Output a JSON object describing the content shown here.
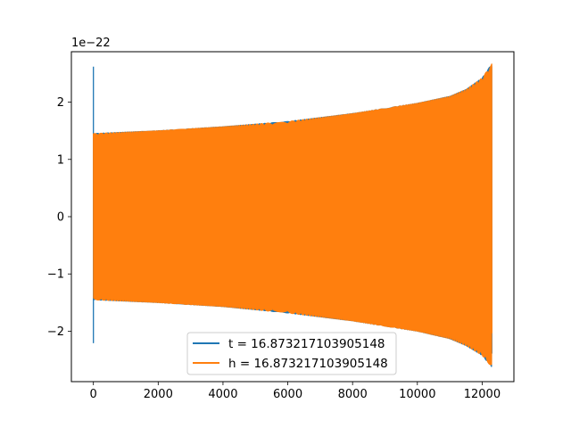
{
  "chart_data": {
    "type": "line",
    "title": "",
    "xlabel": "",
    "ylabel": "",
    "y_offset_label": "1e−22",
    "y_scale_factor": 1e-22,
    "xlim": [
      -680,
      12980
    ],
    "ylim": [
      -2.88,
      2.88
    ],
    "xticks": [
      0,
      2000,
      4000,
      6000,
      8000,
      10000,
      12000
    ],
    "xtick_labels": [
      "0",
      "2000",
      "4000",
      "6000",
      "8000",
      "10000",
      "12000"
    ],
    "yticks": [
      -2,
      -1,
      0,
      1,
      2
    ],
    "ytick_labels": [
      "−2",
      "−1",
      "0",
      "1",
      "2"
    ],
    "grid": false,
    "legend_position": "lower center",
    "series": [
      {
        "name": "t = 16.873217103905148",
        "color": "#1f77b4",
        "n_samples": 12300,
        "start_spike": {
          "x": 0,
          "max": 2.62,
          "min": -2.2
        },
        "envelope_x": [
          0,
          2000,
          4000,
          6000,
          8000,
          10000,
          11000,
          11500,
          12000,
          12300
        ],
        "envelope_upper": [
          1.45,
          1.5,
          1.57,
          1.66,
          1.8,
          1.98,
          2.1,
          2.22,
          2.42,
          2.67
        ],
        "envelope_lower": [
          -1.45,
          -1.5,
          -1.57,
          -1.68,
          -1.82,
          -2.0,
          -2.13,
          -2.25,
          -2.42,
          -2.63
        ],
        "end_value": -2.2
      },
      {
        "name": "h = 16.873217103905148",
        "color": "#ff7f0e",
        "n_samples": 12300,
        "envelope_x": [
          0,
          2000,
          4000,
          6000,
          8000,
          10000,
          11000,
          11500,
          12000,
          12300
        ],
        "envelope_upper": [
          1.45,
          1.5,
          1.57,
          1.66,
          1.8,
          1.98,
          2.1,
          2.22,
          2.42,
          2.67
        ],
        "envelope_lower": [
          -1.45,
          -1.5,
          -1.57,
          -1.68,
          -1.82,
          -2.0,
          -2.13,
          -2.25,
          -2.42,
          -2.63
        ]
      }
    ]
  }
}
